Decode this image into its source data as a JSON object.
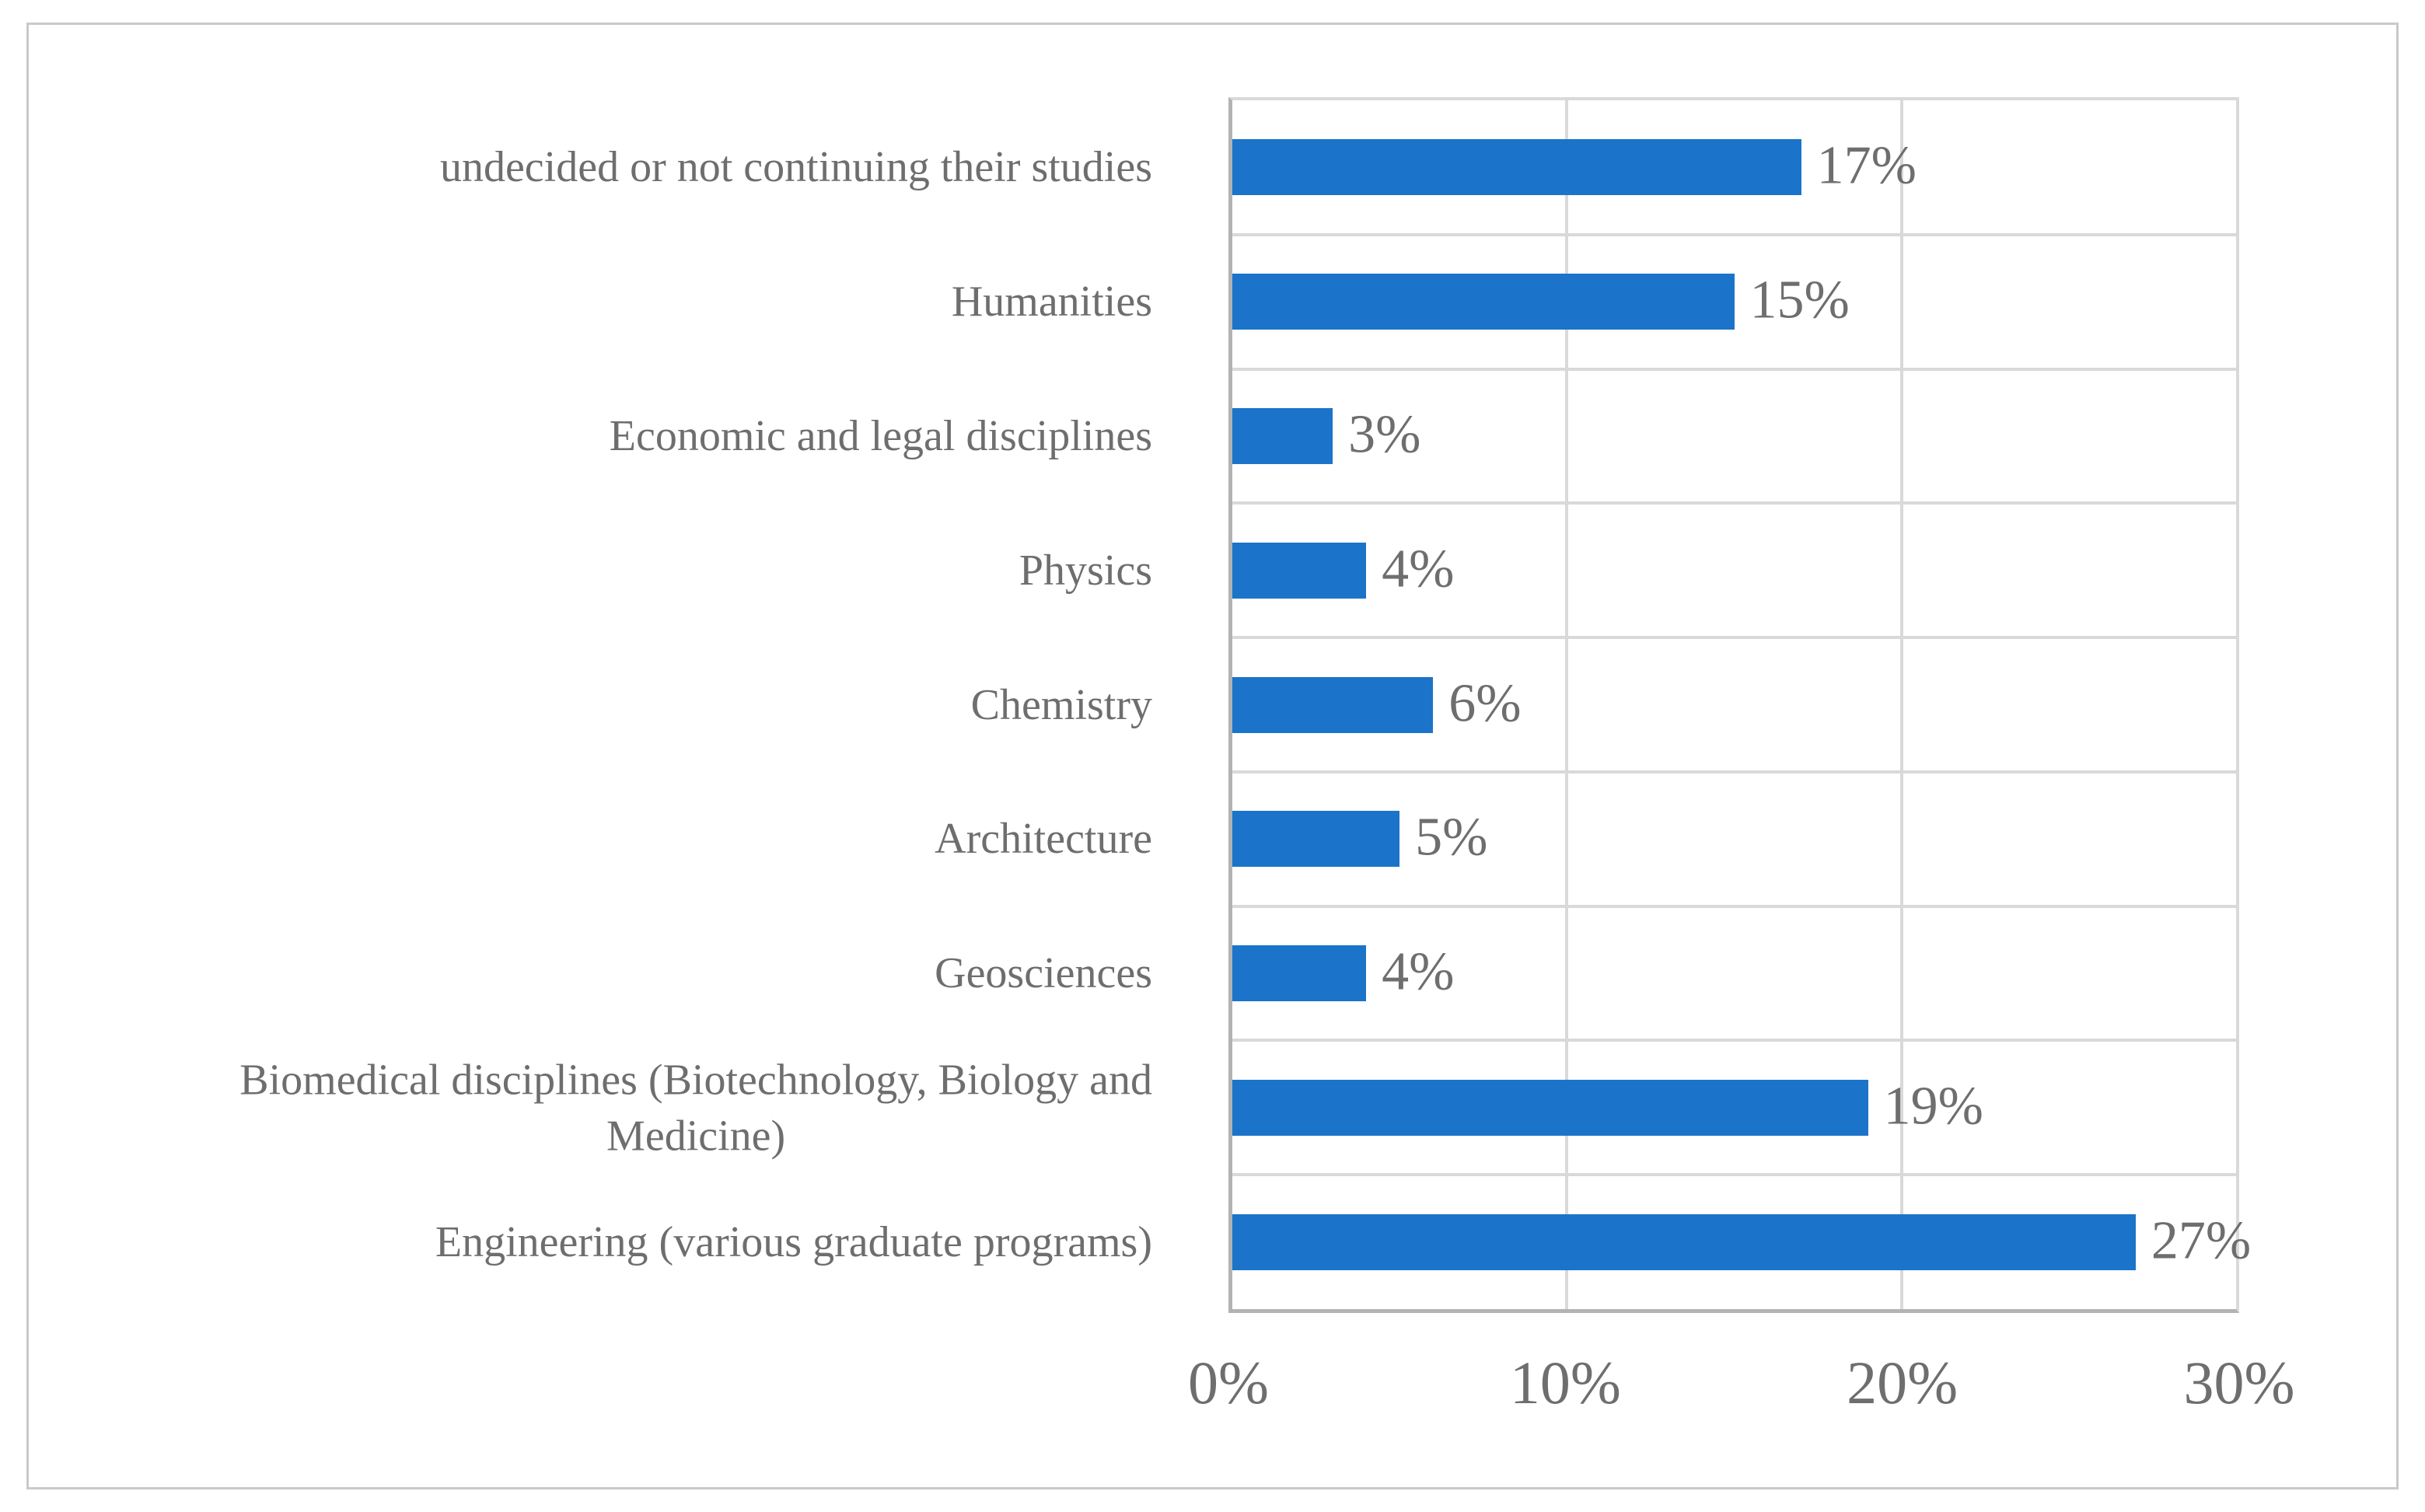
{
  "chart_data": {
    "type": "bar",
    "orientation": "horizontal",
    "title": "",
    "xlabel": "",
    "ylabel": "",
    "xlim": [
      0,
      30
    ],
    "grid": true,
    "legend": "none",
    "x_ticks": [
      "0%",
      "10%",
      "20%",
      "30%"
    ],
    "x_tick_values": [
      0,
      10,
      20,
      30
    ],
    "categories": [
      "undecided or not continuing their studies",
      "Humanities",
      "Economic and legal disciplines",
      "Physics",
      "Chemistry",
      "Architecture",
      "Geosciences",
      "Biomedical disciplines (Biotechnology, Biology and Medicine)",
      "Engineering (various graduate programs)"
    ],
    "category_lines": [
      [
        "undecided or not continuing their studies"
      ],
      [
        "Humanities"
      ],
      [
        "Economic and legal disciplines"
      ],
      [
        "Physics"
      ],
      [
        "Chemistry"
      ],
      [
        "Architecture"
      ],
      [
        "Geosciences"
      ],
      [
        "Biomedical disciplines (Biotechnology, Biology and",
        "Medicine)"
      ],
      [
        "Engineering (various graduate programs)"
      ]
    ],
    "values": [
      17,
      15,
      3,
      4,
      6,
      5,
      4,
      19,
      27
    ],
    "data_labels": [
      "17%",
      "15%",
      "3%",
      "4%",
      "6%",
      "5%",
      "4%",
      "19%",
      "27%"
    ]
  },
  "colors": {
    "bar": "#1b74c9",
    "gridline": "#d9d9d9",
    "axis_line": "#b3b3b3",
    "text": "#6e6e6e",
    "frame_border": "#c9c9c9",
    "background": "#ffffff"
  }
}
